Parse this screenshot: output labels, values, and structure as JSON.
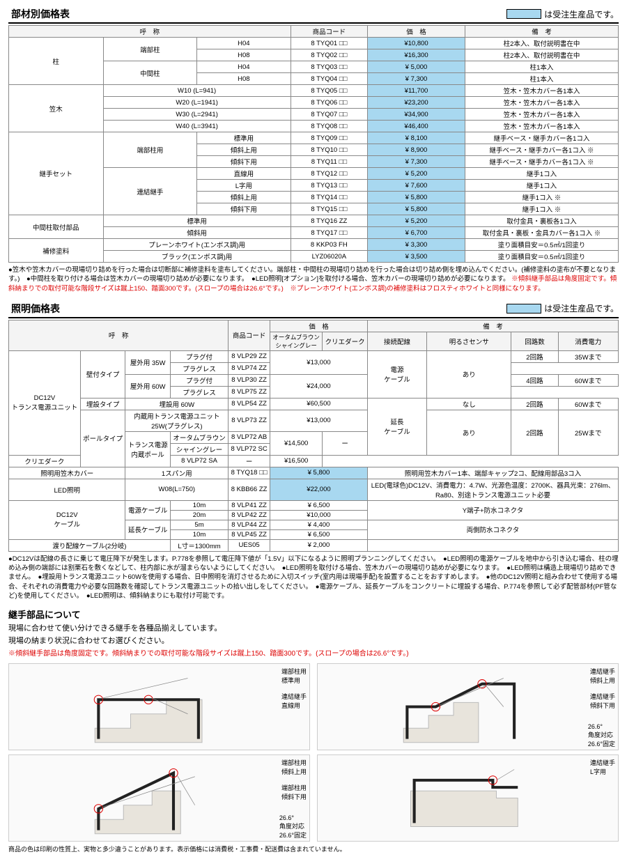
{
  "legend": {
    "text": "は受注生産品です。"
  },
  "table1": {
    "title": "部材別価格表",
    "headers": [
      "呼　称",
      "商品コード",
      "価　格",
      "備　考"
    ],
    "groups": [
      {
        "cat": "柱",
        "subgroups": [
          {
            "sub": "端部柱",
            "rows": [
              {
                "spec": "H04",
                "code": "8 TYQ01 □□",
                "price": "¥10,800",
                "hl": true,
                "note": "柱2本入、取付説明書在中"
              },
              {
                "spec": "H08",
                "code": "8 TYQ02 □□",
                "price": "¥16,300",
                "hl": true,
                "note": "柱2本入、取付説明書在中"
              }
            ]
          },
          {
            "sub": "中間柱",
            "rows": [
              {
                "spec": "H04",
                "code": "8 TYQ03 □□",
                "price": "¥ 5,000",
                "hl": true,
                "note": "柱1本入"
              },
              {
                "spec": "H08",
                "code": "8 TYQ04 □□",
                "price": "¥ 7,300",
                "hl": true,
                "note": "柱1本入"
              }
            ]
          }
        ]
      },
      {
        "cat": "笠木",
        "subgroups": [
          {
            "sub": "",
            "rows": [
              {
                "spec": "W10 (L=941)",
                "code": "8 TYQ05 □□",
                "price": "¥11,700",
                "hl": true,
                "note": "笠木・笠木カバー各1本入"
              },
              {
                "spec": "W20 (L=1941)",
                "code": "8 TYQ06 □□",
                "price": "¥23,200",
                "hl": true,
                "note": "笠木・笠木カバー各1本入"
              },
              {
                "spec": "W30 (L=2941)",
                "code": "8 TYQ07 □□",
                "price": "¥34,900",
                "hl": true,
                "note": "笠木・笠木カバー各1本入"
              },
              {
                "spec": "W40 (L=3941)",
                "code": "8 TYQ08 □□",
                "price": "¥46,400",
                "hl": true,
                "note": "笠木・笠木カバー各1本入"
              }
            ]
          }
        ]
      },
      {
        "cat": "継手セット",
        "subgroups": [
          {
            "sub": "端部柱用",
            "rows": [
              {
                "spec": "標準用",
                "code": "8 TYQ09 □□",
                "price": "¥ 8,100",
                "hl": true,
                "note": "継手ベース・継手カバー各1コ入"
              },
              {
                "spec": "傾斜上用",
                "code": "8 TYQ10 □□",
                "price": "¥ 8,900",
                "hl": true,
                "note": "継手ベース・継手カバー各1コ入 ※"
              },
              {
                "spec": "傾斜下用",
                "code": "8 TYQ11 □□",
                "price": "¥ 7,300",
                "hl": true,
                "note": "継手ベース・継手カバー各1コ入 ※"
              }
            ]
          },
          {
            "sub": "連結継手",
            "rows": [
              {
                "spec": "直線用",
                "code": "8 TYQ12 □□",
                "price": "¥ 5,200",
                "hl": true,
                "note": "継手1コ入"
              },
              {
                "spec": "L字用",
                "code": "8 TYQ13 □□",
                "price": "¥ 7,600",
                "hl": true,
                "note": "継手1コ入"
              },
              {
                "spec": "傾斜上用",
                "code": "8 TYQ14 □□",
                "price": "¥ 5,800",
                "hl": true,
                "note": "継手1コ入 ※"
              },
              {
                "spec": "傾斜下用",
                "code": "8 TYQ15 □□",
                "price": "¥ 5,800",
                "hl": true,
                "note": "継手1コ入 ※"
              }
            ]
          }
        ]
      },
      {
        "cat": "中間柱取付部品",
        "subgroups": [
          {
            "sub": "",
            "rows": [
              {
                "spec": "標準用",
                "code": "8 TYQ16 ZZ",
                "price": "¥ 5,200",
                "hl": true,
                "note": "取付金具・裏板各1コ入"
              },
              {
                "spec": "傾斜用",
                "code": "8 TYQ17 □□",
                "price": "¥ 6,700",
                "hl": true,
                "note": "取付金具・裏板・金具カバー各1コ入 ※"
              }
            ]
          }
        ]
      },
      {
        "cat": "補修塗料",
        "subgroups": [
          {
            "sub": "",
            "rows": [
              {
                "spec": "プレーンホワイト(エンボス調)用",
                "code": "8 KKP03 FH",
                "price": "¥ 3,300",
                "hl": true,
                "note": "塗り面積目安＝0.5㎡/1回塗り"
              },
              {
                "spec": "ブラック(エンボス調)用",
                "code": "LYZ06020A",
                "price": "¥ 3,500",
                "hl": true,
                "note": "塗り面積目安＝0.5㎡/1回塗り"
              }
            ]
          }
        ]
      }
    ],
    "notes_black1": "●笠木や笠木カバーの現場切り詰めを行った場合は切断部に補修塗料を塗布してください。端部柱・中間柱の現場切り詰めを行った場合は切り詰め側を埋め込んでください。(補修塗料の塗布が不要となります。)　●中間柱を取り付ける場合は笠木カバーの現場切り詰めが必要になります。　●LED照明[オプション]を取付ける場合、笠木カバーの現場切り詰めが必要になります。",
    "notes_red": "※傾斜継手部品は角度固定です。傾斜納まりでの取付可能な階段サイズは蹴上150、踏面300です。(スロープの場合は26.6°です。)　※プレーンホワイト(エンボス調)の補修塗料はフロスティホワイトと同様になります。"
  },
  "table2": {
    "title": "照明価格表",
    "head": {
      "name": "呼　称",
      "code": "商品コード",
      "price": "価　格",
      "price_sub1": "オータムブラウン\nシャイングレー",
      "price_sub2": "クリエダーク",
      "note": "備　考",
      "n1": "接続配線",
      "n2": "明るさセンサ",
      "n3": "回路数",
      "n4": "消費電力"
    },
    "rows": [
      {
        "g1": "DC12V\nトランス電源ユニット",
        "g2": "壁付タイプ",
        "g3": "屋外用 35W",
        "g4": "プラグ付",
        "code": "8 VLP29 ZZ",
        "p1": "¥13,000",
        "p2": "",
        "p1span": 2,
        "n1": "電源\nケーブル",
        "n2": "あり",
        "n3": "2回路",
        "n4": "35Wまで",
        "n1rs": 4,
        "n2rs": 4,
        "g1rs": 8,
        "g2rs": 4,
        "g3rs": 2,
        "p1rs": 2
      },
      {
        "g4": "プラグレス",
        "code": "8 VLP74 ZZ"
      },
      {
        "g3": "屋外用 60W",
        "g3rs": 2,
        "g4": "プラグ付",
        "code": "8 VLP30 ZZ",
        "p1": "¥24,000",
        "p2": "",
        "p1span": 2,
        "p1rs": 2,
        "n3": "4回路",
        "n4": "60Wまで"
      },
      {
        "g4": "プラグレス",
        "code": "8 VLP75 ZZ"
      },
      {
        "g2": "埋設タイプ",
        "g3": "埋設用 60W",
        "g3cs": 2,
        "code": "8 VLP54 ZZ",
        "p1": "¥60,500",
        "p1span": 2,
        "n1": "延長\nケーブル",
        "n1rs": 4,
        "n2": "なし",
        "n3": "2回路",
        "n4": "60Wまで"
      },
      {
        "g2": "ポールタイプ",
        "g2rs": 4,
        "g3": "内蔵用トランス電源ユニット\n25W(プラグレス)",
        "g3cs": 2,
        "code": "8 VLP73 ZZ",
        "p1": "¥13,000",
        "p1span": 2,
        "n2": "あり",
        "n2rs": 3,
        "n3": "2回路",
        "n3rs": 3,
        "n4": "25Wまで",
        "n4rs": 3
      },
      {
        "g3": "トランス電源\n内蔵ポール",
        "g3rs": 3,
        "g4": "オータムブラウン",
        "code": "8 VLP72 AB",
        "p1": "¥14,500",
        "p1rs": 2,
        "p2": "ー",
        "p2rs": 2
      },
      {
        "g4": "シャイングレー",
        "code": "8 VLP72 SC"
      },
      {
        "g4": "クリエダーク",
        "code": "8 VLP72 SA",
        "p1": "ー",
        "p2": "¥16,500"
      },
      {
        "g1": "照明用笠木カバー",
        "g1cs": 2,
        "g3": "1スパン用",
        "g3cs": 2,
        "code": "8 TYQ18 □□",
        "p1": "¥ 5,800",
        "p1span": 2,
        "hl": true,
        "nfull": "照明用笠木カバー1本、端部キャップ2コ、配線用部品3コ入"
      },
      {
        "g1": "LED照明",
        "g1cs": 2,
        "g3": "W08(L=750)",
        "g3cs": 2,
        "code": "8 KBB66 ZZ",
        "p1": "¥22,000",
        "p1span": 2,
        "hl": true,
        "nfull": "LED(電球色)DC12V、消費電力：4.7W、光源色温度：2700K、器具光束：276lm、\nRa80、別途トランス電源ユニット必要"
      },
      {
        "g1": "DC12V\nケーブル",
        "g1rs": 4,
        "g1cs": 2,
        "g3": "電源ケーブル",
        "g3rs": 2,
        "g4": "10m",
        "code": "8 VLP41 ZZ",
        "p1": "¥ 6,500",
        "p1span": 2,
        "nfull": "Y端子+防水コネクタ",
        "nfullrs": 2
      },
      {
        "g4": "20m",
        "code": "8 VLP42 ZZ",
        "p1": "¥10,000",
        "p1span": 2
      },
      {
        "g3": "延長ケーブル",
        "g3rs": 2,
        "g4": "5m",
        "code": "8 VLP44 ZZ",
        "p1": "¥ 4,400",
        "p1span": 2,
        "nfull": "両側防水コネクタ",
        "nfullrs": 2
      },
      {
        "g4": "10m",
        "code": "8 VLP45 ZZ",
        "p1": "¥ 6,500",
        "p1span": 2
      },
      {
        "g1": "渡り配線ケーブル(2分岐)",
        "g1cs": 3,
        "g4": "L寸＝1300mm",
        "code": "UES05",
        "p1": "¥ 2,000",
        "p1span": 2,
        "nfull": ""
      }
    ],
    "notes": "●DC12Vは配線の長さに乗じて電圧降下が発生します。P.778を参照して電圧降下値が「1.5V」以下になるように照明プランニングしてください。　●LED照明の電源ケーブルを地中から引き込む場合、柱の埋め込み側の端部には割栗石を敷くなどして、柱内部に水が溜まらないようにしてください。　●LED照明を取付ける場合、笠木カバーの現場切り詰めが必要になります。　●LED照明は構造上現場切り詰めできません。　●埋設用トランス電源ユニット60Wを使用する場合、日中照明を消灯させるために入切スイッチ(室内用は現場手配)を設置することをおすすめします。　●他のDC12V照明と組み合わせて使用する場合、それぞれの消費電力や必要な回路数を確認してトランス電源ユニットの拾い出しをしてください。　●電源ケーブル、延長ケーブルをコンクリートに埋設する場合、P.774を参照して必ず配管部材(PF管など)を使用してください。　●LED照明は、傾斜納まりにも取付け可能です。"
  },
  "joint": {
    "title": "継手部品について",
    "line1": "現場に合わせて使い分けできる継手を各種品揃えしています。",
    "line2": "現場の納まり状況に合わせてお選びください。",
    "warn": "※傾斜継手部品は角度固定です。傾斜納まりでの取付可能な階段サイズは蹴上150、踏面300です。(スロープの場合は26.6°です。)",
    "labels": {
      "d1a": "端部柱用\n標準用",
      "d1b": "連結継手\n直線用",
      "d2a": "端部柱用\n傾斜上用",
      "d2b": "端部柱用\n傾斜下用",
      "d2ang": "26.6°\n角度対応\n26.6°固定",
      "d3a": "連結継手\n傾斜上用",
      "d3b": "連結継手\n傾斜下用",
      "d3ang": "26.6°\n角度対応\n26.6°固定",
      "d4a": "連結継手\nL字用"
    }
  },
  "footer": "商品の色は印刷の性質上、実物と多少違うことがあります。表示価格には消費税・工事費・配送費は含まれていません。",
  "colors": {
    "highlight": "#a8d8f0",
    "border": "#888888",
    "red": "#dd0000",
    "text": "#000000"
  }
}
